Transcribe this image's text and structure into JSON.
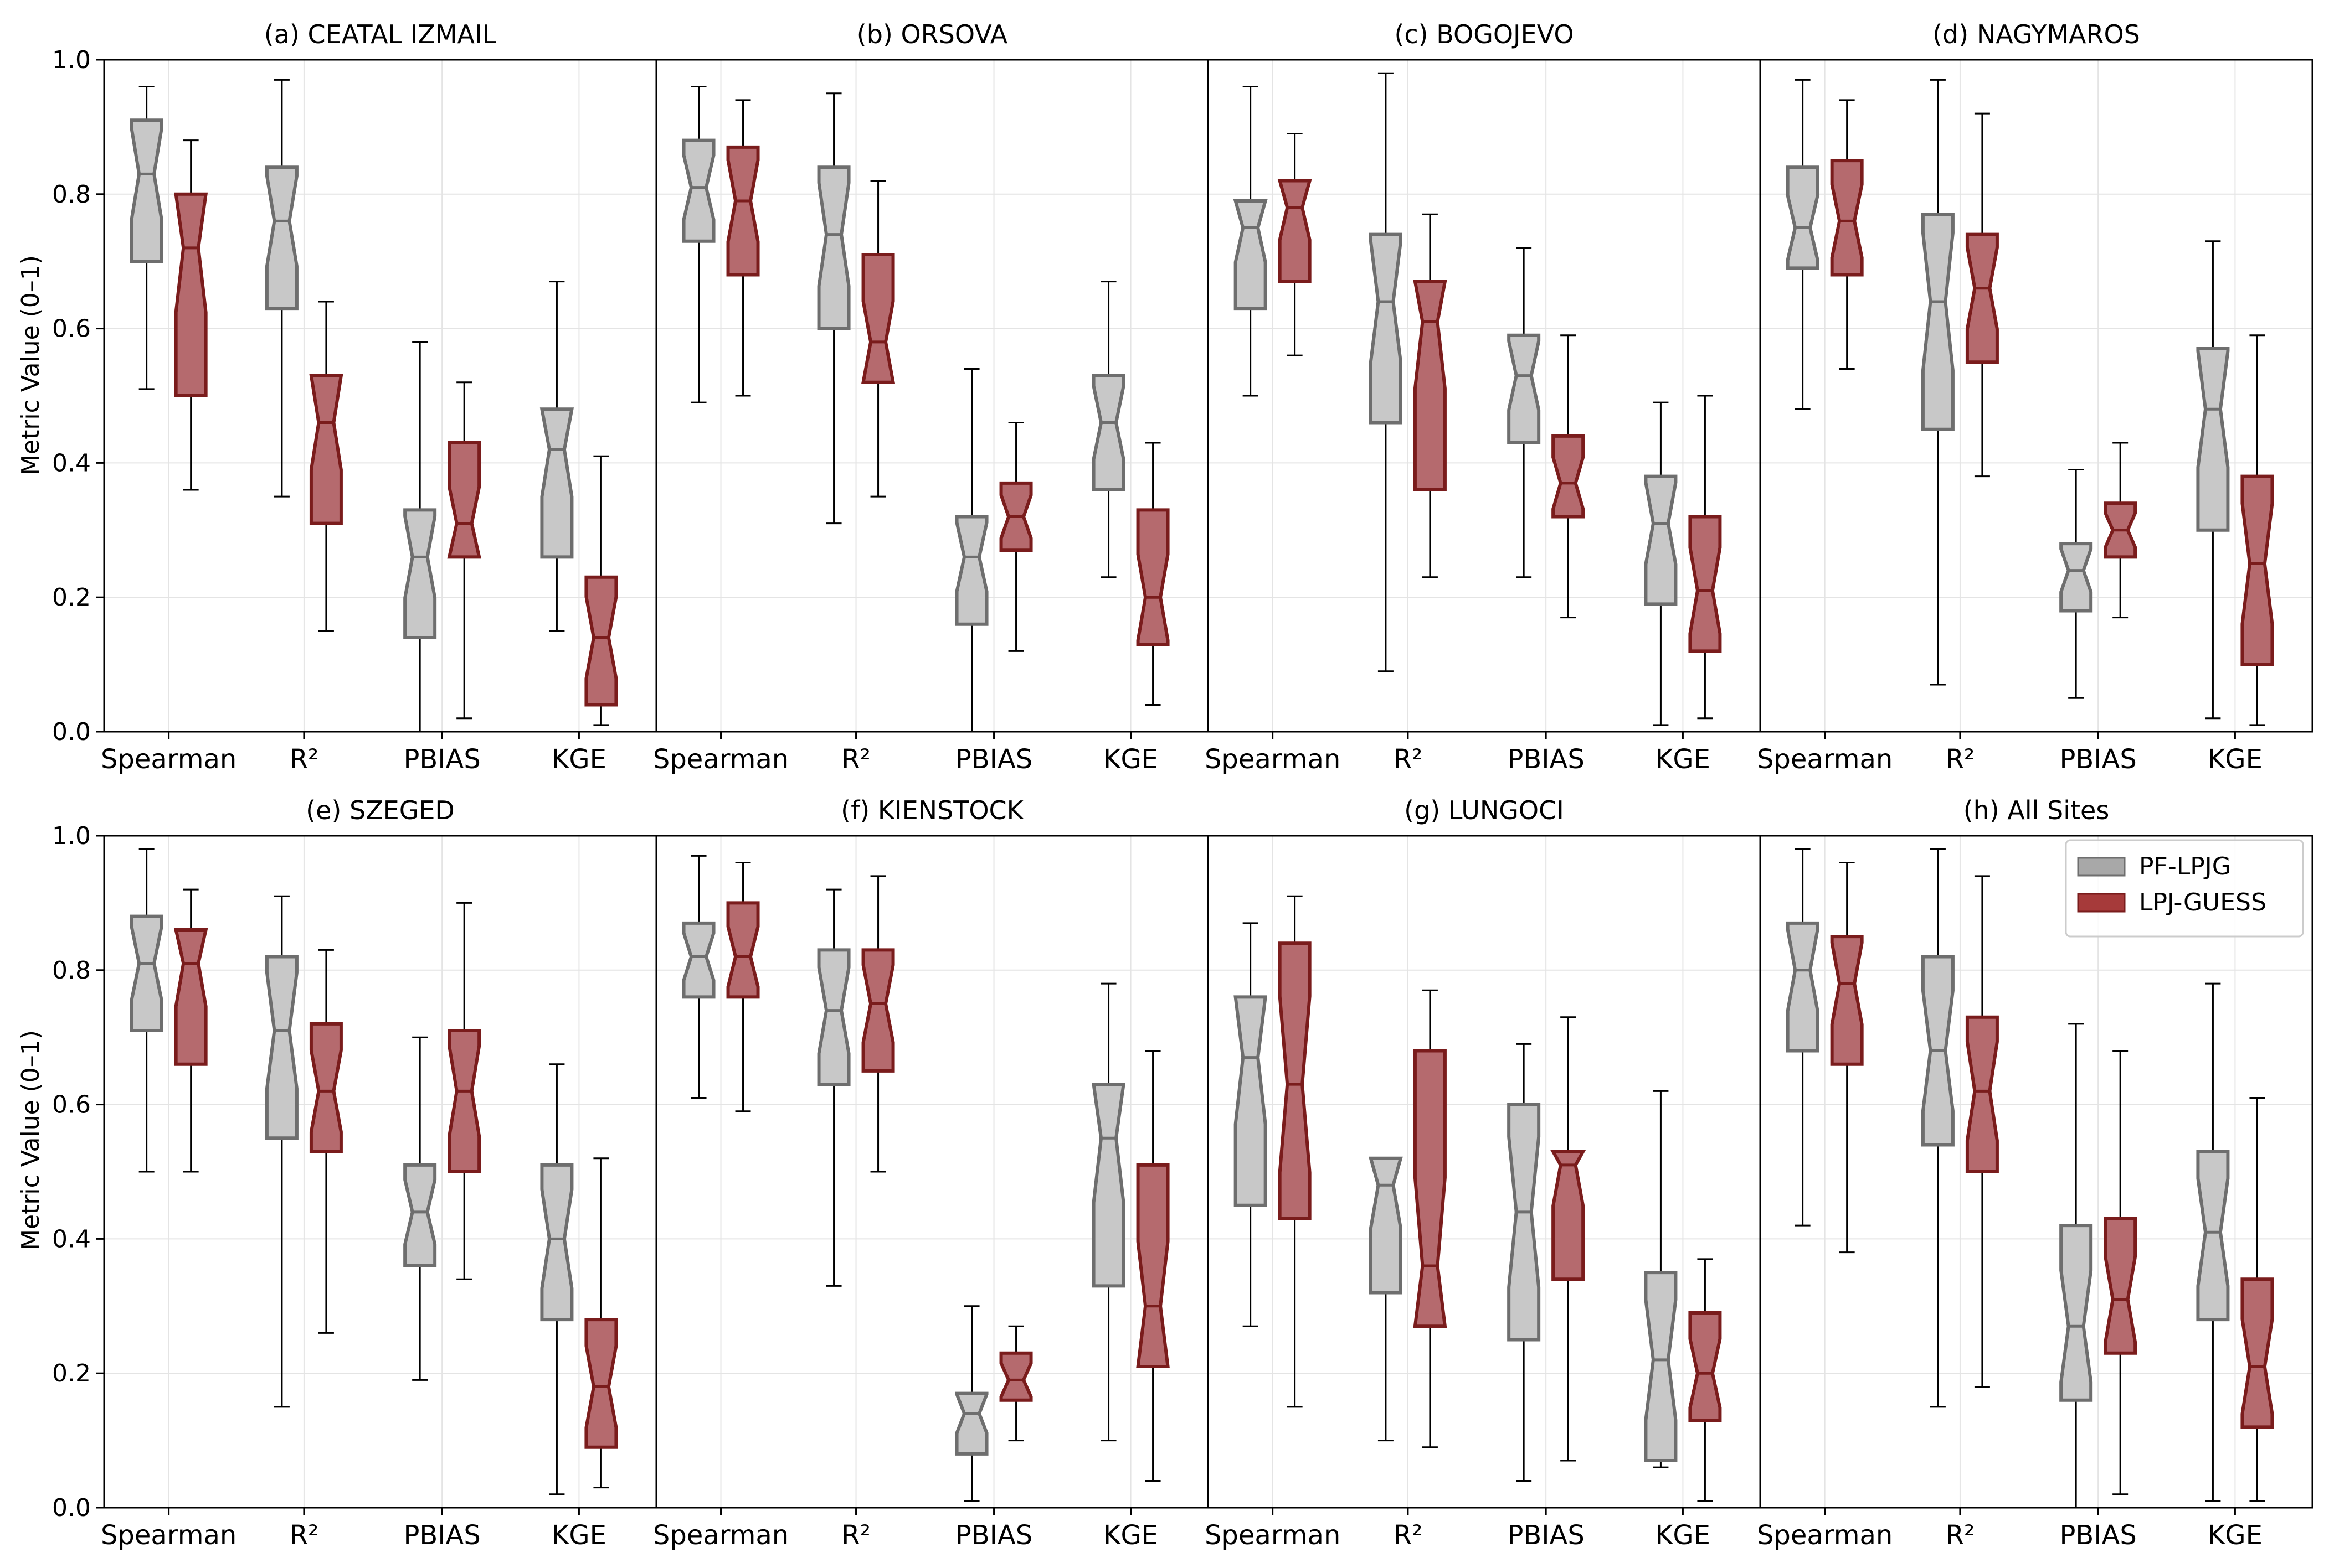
{
  "figure": {
    "ylabel": "Metric Value (0–1)",
    "categories": [
      "Spearman",
      "R²",
      "PBIAS",
      "KGE"
    ],
    "yticks": [
      "0.0",
      "0.2",
      "0.4",
      "0.6",
      "0.8",
      "1.0"
    ]
  },
  "legend": {
    "items": [
      {
        "name": "PF-LPJG",
        "fill": "#c8c8c8",
        "stroke": "#6e6e6e"
      },
      {
        "name": "LPJ-GUESS",
        "fill": "#a63a3a",
        "stroke": "#7a1c1c"
      }
    ]
  },
  "chart_data": {
    "type": "box",
    "ylim": [
      0,
      1
    ],
    "ylabel": "Metric Value (0–1)",
    "categories": [
      "Spearman",
      "R²",
      "PBIAS",
      "KGE"
    ],
    "series_names": [
      "PF-LPJG",
      "LPJ-GUESS"
    ],
    "colors": {
      "PF-LPJG": {
        "fill": "#c8c8c8",
        "stroke": "#6e6e6e"
      },
      "LPJ-GUESS": {
        "fill": "#b56a6e",
        "stroke": "#7a1c1c"
      }
    },
    "panels": [
      {
        "title": "(a) CEATAL IZMAIL",
        "boxes": {
          "PF-LPJG": [
            {
              "min": 0.51,
              "q1": 0.7,
              "med": 0.83,
              "q3": 0.91,
              "max": 0.96
            },
            {
              "min": 0.35,
              "q1": 0.63,
              "med": 0.76,
              "q3": 0.84,
              "max": 0.97
            },
            {
              "min": 0.0,
              "q1": 0.14,
              "med": 0.26,
              "q3": 0.33,
              "max": 0.58
            },
            {
              "min": 0.15,
              "q1": 0.26,
              "med": 0.42,
              "q3": 0.48,
              "max": 0.67
            }
          ],
          "LPJ-GUESS": [
            {
              "min": 0.36,
              "q1": 0.5,
              "med": 0.72,
              "q3": 0.8,
              "max": 0.88
            },
            {
              "min": 0.15,
              "q1": 0.31,
              "med": 0.46,
              "q3": 0.53,
              "max": 0.64
            },
            {
              "min": 0.02,
              "q1": 0.26,
              "med": 0.31,
              "q3": 0.43,
              "max": 0.52
            },
            {
              "min": 0.01,
              "q1": 0.04,
              "med": 0.14,
              "q3": 0.23,
              "max": 0.41
            }
          ]
        }
      },
      {
        "title": "(b) ORSOVA",
        "boxes": {
          "PF-LPJG": [
            {
              "min": 0.49,
              "q1": 0.73,
              "med": 0.81,
              "q3": 0.88,
              "max": 0.96
            },
            {
              "min": 0.31,
              "q1": 0.6,
              "med": 0.74,
              "q3": 0.84,
              "max": 0.95
            },
            {
              "min": 0.0,
              "q1": 0.16,
              "med": 0.26,
              "q3": 0.32,
              "max": 0.54
            },
            {
              "min": 0.23,
              "q1": 0.36,
              "med": 0.46,
              "q3": 0.53,
              "max": 0.67
            }
          ],
          "LPJ-GUESS": [
            {
              "min": 0.5,
              "q1": 0.68,
              "med": 0.79,
              "q3": 0.87,
              "max": 0.94
            },
            {
              "min": 0.35,
              "q1": 0.52,
              "med": 0.58,
              "q3": 0.71,
              "max": 0.82
            },
            {
              "min": 0.12,
              "q1": 0.27,
              "med": 0.32,
              "q3": 0.37,
              "max": 0.46
            },
            {
              "min": 0.04,
              "q1": 0.13,
              "med": 0.2,
              "q3": 0.33,
              "max": 0.43
            }
          ]
        }
      },
      {
        "title": "(c) BOGOJEVO",
        "boxes": {
          "PF-LPJG": [
            {
              "min": 0.5,
              "q1": 0.63,
              "med": 0.75,
              "q3": 0.79,
              "max": 0.96
            },
            {
              "min": 0.09,
              "q1": 0.46,
              "med": 0.64,
              "q3": 0.74,
              "max": 0.98
            },
            {
              "min": 0.23,
              "q1": 0.43,
              "med": 0.53,
              "q3": 0.59,
              "max": 0.72
            },
            {
              "min": 0.01,
              "q1": 0.19,
              "med": 0.31,
              "q3": 0.38,
              "max": 0.49
            }
          ],
          "LPJ-GUESS": [
            {
              "min": 0.56,
              "q1": 0.67,
              "med": 0.78,
              "q3": 0.82,
              "max": 0.89
            },
            {
              "min": 0.23,
              "q1": 0.36,
              "med": 0.61,
              "q3": 0.67,
              "max": 0.77
            },
            {
              "min": 0.17,
              "q1": 0.32,
              "med": 0.37,
              "q3": 0.44,
              "max": 0.59
            },
            {
              "min": 0.02,
              "q1": 0.12,
              "med": 0.21,
              "q3": 0.32,
              "max": 0.5
            }
          ]
        }
      },
      {
        "title": "(d) NAGYMAROS",
        "boxes": {
          "PF-LPJG": [
            {
              "min": 0.48,
              "q1": 0.69,
              "med": 0.75,
              "q3": 0.84,
              "max": 0.97
            },
            {
              "min": 0.07,
              "q1": 0.45,
              "med": 0.64,
              "q3": 0.77,
              "max": 0.97
            },
            {
              "min": 0.05,
              "q1": 0.18,
              "med": 0.24,
              "q3": 0.28,
              "max": 0.39
            },
            {
              "min": 0.02,
              "q1": 0.3,
              "med": 0.48,
              "q3": 0.57,
              "max": 0.73
            }
          ],
          "LPJ-GUESS": [
            {
              "min": 0.54,
              "q1": 0.68,
              "med": 0.76,
              "q3": 0.85,
              "max": 0.94
            },
            {
              "min": 0.38,
              "q1": 0.55,
              "med": 0.66,
              "q3": 0.74,
              "max": 0.92
            },
            {
              "min": 0.17,
              "q1": 0.26,
              "med": 0.3,
              "q3": 0.34,
              "max": 0.43
            },
            {
              "min": 0.01,
              "q1": 0.1,
              "med": 0.25,
              "q3": 0.38,
              "max": 0.59
            }
          ]
        }
      },
      {
        "title": "(e) SZEGED",
        "boxes": {
          "PF-LPJG": [
            {
              "min": 0.5,
              "q1": 0.71,
              "med": 0.81,
              "q3": 0.88,
              "max": 0.98
            },
            {
              "min": 0.15,
              "q1": 0.55,
              "med": 0.71,
              "q3": 0.82,
              "max": 0.91
            },
            {
              "min": 0.19,
              "q1": 0.36,
              "med": 0.44,
              "q3": 0.51,
              "max": 0.7
            },
            {
              "min": 0.02,
              "q1": 0.28,
              "med": 0.4,
              "q3": 0.51,
              "max": 0.66
            }
          ],
          "LPJ-GUESS": [
            {
              "min": 0.5,
              "q1": 0.66,
              "med": 0.81,
              "q3": 0.86,
              "max": 0.92
            },
            {
              "min": 0.26,
              "q1": 0.53,
              "med": 0.62,
              "q3": 0.72,
              "max": 0.83
            },
            {
              "min": 0.34,
              "q1": 0.5,
              "med": 0.62,
              "q3": 0.71,
              "max": 0.9
            },
            {
              "min": 0.03,
              "q1": 0.09,
              "med": 0.18,
              "q3": 0.28,
              "max": 0.52
            }
          ]
        }
      },
      {
        "title": "(f) KIENSTOCK",
        "boxes": {
          "PF-LPJG": [
            {
              "min": 0.61,
              "q1": 0.76,
              "med": 0.82,
              "q3": 0.87,
              "max": 0.97
            },
            {
              "min": 0.33,
              "q1": 0.63,
              "med": 0.74,
              "q3": 0.83,
              "max": 0.92
            },
            {
              "min": 0.01,
              "q1": 0.08,
              "med": 0.14,
              "q3": 0.17,
              "max": 0.3
            },
            {
              "min": 0.1,
              "q1": 0.33,
              "med": 0.55,
              "q3": 0.63,
              "max": 0.78
            }
          ],
          "LPJ-GUESS": [
            {
              "min": 0.59,
              "q1": 0.76,
              "med": 0.82,
              "q3": 0.9,
              "max": 0.96
            },
            {
              "min": 0.5,
              "q1": 0.65,
              "med": 0.75,
              "q3": 0.83,
              "max": 0.94
            },
            {
              "min": 0.1,
              "q1": 0.16,
              "med": 0.19,
              "q3": 0.23,
              "max": 0.27
            },
            {
              "min": 0.04,
              "q1": 0.21,
              "med": 0.3,
              "q3": 0.51,
              "max": 0.68
            }
          ]
        }
      },
      {
        "title": "(g) LUNGOCI",
        "boxes": {
          "PF-LPJG": [
            {
              "min": 0.27,
              "q1": 0.45,
              "med": 0.67,
              "q3": 0.76,
              "max": 0.87
            },
            {
              "min": 0.1,
              "q1": 0.32,
              "med": 0.48,
              "q3": 0.52,
              "max": 0.52
            },
            {
              "min": 0.04,
              "q1": 0.25,
              "med": 0.44,
              "q3": 0.6,
              "max": 0.69
            },
            {
              "min": 0.06,
              "q1": 0.07,
              "med": 0.22,
              "q3": 0.35,
              "max": 0.62
            }
          ],
          "LPJ-GUESS": [
            {
              "min": 0.15,
              "q1": 0.43,
              "med": 0.63,
              "q3": 0.84,
              "max": 0.91
            },
            {
              "min": 0.09,
              "q1": 0.27,
              "med": 0.36,
              "q3": 0.68,
              "max": 0.77
            },
            {
              "min": 0.07,
              "q1": 0.34,
              "med": 0.51,
              "q3": 0.53,
              "max": 0.73
            },
            {
              "min": 0.01,
              "q1": 0.13,
              "med": 0.2,
              "q3": 0.29,
              "max": 0.37
            }
          ]
        }
      },
      {
        "title": "(h) All Sites",
        "boxes": {
          "PF-LPJG": [
            {
              "min": 0.42,
              "q1": 0.68,
              "med": 0.8,
              "q3": 0.87,
              "max": 0.98
            },
            {
              "min": 0.15,
              "q1": 0.54,
              "med": 0.68,
              "q3": 0.82,
              "max": 0.98
            },
            {
              "min": 0.0,
              "q1": 0.16,
              "med": 0.27,
              "q3": 0.42,
              "max": 0.72
            },
            {
              "min": 0.01,
              "q1": 0.28,
              "med": 0.41,
              "q3": 0.53,
              "max": 0.78
            }
          ],
          "LPJ-GUESS": [
            {
              "min": 0.38,
              "q1": 0.66,
              "med": 0.78,
              "q3": 0.85,
              "max": 0.96
            },
            {
              "min": 0.18,
              "q1": 0.5,
              "med": 0.62,
              "q3": 0.73,
              "max": 0.94
            },
            {
              "min": 0.02,
              "q1": 0.23,
              "med": 0.31,
              "q3": 0.43,
              "max": 0.68
            },
            {
              "min": 0.01,
              "q1": 0.12,
              "med": 0.21,
              "q3": 0.34,
              "max": 0.61
            }
          ]
        }
      }
    ]
  }
}
